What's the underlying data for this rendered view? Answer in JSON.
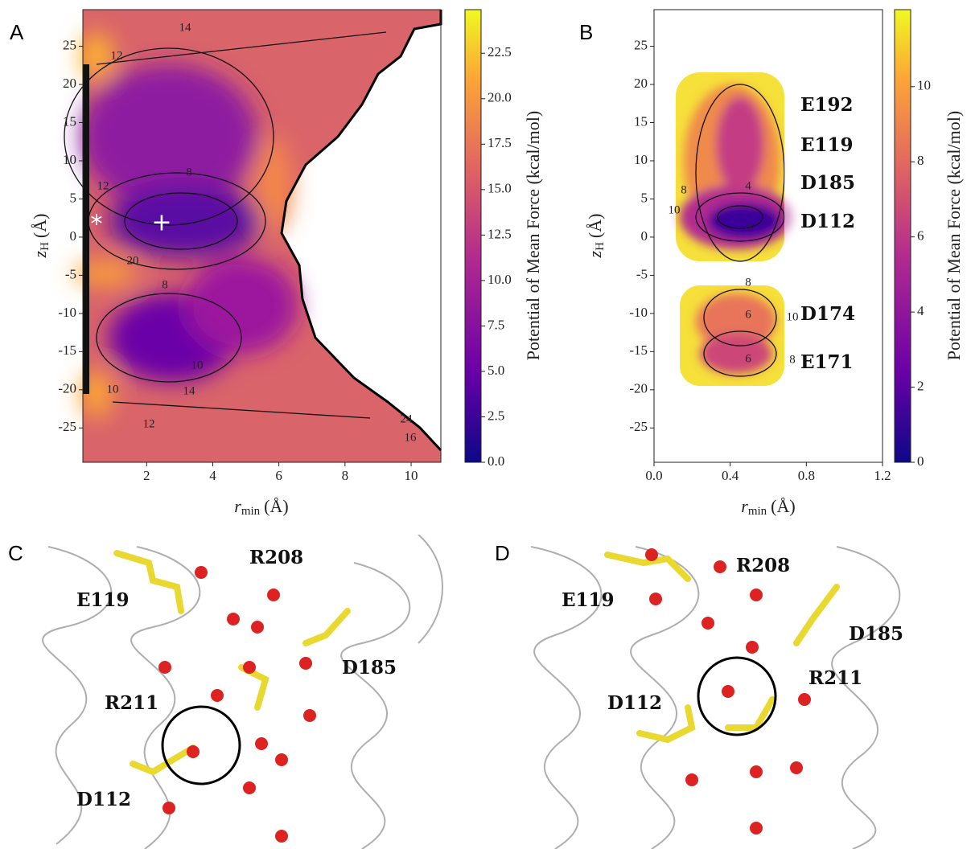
{
  "panels": [
    {
      "label": "A",
      "xlabel": {
        "main": "r",
        "sub": "min",
        "unit": "(Å)"
      },
      "ylabel": {
        "main": "z",
        "sub": "H",
        "unit": "(Å)"
      },
      "xlim": [
        0.07,
        10.9
      ],
      "ylim": [
        -29.5,
        29.8
      ],
      "xticks": [
        2,
        4,
        6,
        8,
        10
      ],
      "yticks": [
        -25,
        -20,
        -15,
        -10,
        -5,
        0,
        5,
        10,
        15,
        20,
        25
      ],
      "colorbar": {
        "label": "Potential of Mean Force (kcal/mol)",
        "lim": [
          0,
          24.9
        ],
        "ticks": [
          {
            "value": 0,
            "label": "0.0"
          },
          2.5,
          {
            "value": 5,
            "label": "5.0"
          },
          7.5,
          {
            "value": 10,
            "label": "10.0"
          },
          12.5,
          {
            "value": 15,
            "label": "15.0"
          },
          17.5,
          {
            "value": 20,
            "label": "20.0"
          },
          22.5
        ]
      },
      "contour_labels": [
        "14",
        "12",
        "8",
        "12",
        "20",
        "8",
        "10",
        "14",
        "12",
        "24",
        "16",
        "10"
      ],
      "markers": [
        "*",
        "+"
      ]
    },
    {
      "label": "B",
      "xlabel": {
        "main": "r",
        "sub": "min",
        "unit": "(Å)"
      },
      "ylabel": {
        "main": "z",
        "sub": "H",
        "unit": "(Å)"
      },
      "xlim": [
        0,
        1.2
      ],
      "ylim": [
        -29.5,
        29.8
      ],
      "xticks": [
        {
          "value": 0,
          "label": "0.0"
        },
        0.4,
        0.8,
        1.2
      ],
      "yticks": [
        -25,
        -20,
        -15,
        -10,
        -5,
        0,
        5,
        10,
        15,
        20,
        25
      ],
      "colorbar": {
        "label": "Potential of Mean Force (kcal/mol)",
        "lim": [
          0,
          12.05
        ],
        "ticks": [
          0,
          2,
          4,
          6,
          8,
          10
        ]
      },
      "contour_labels": [
        "8",
        "10",
        "4",
        "0",
        "8",
        "6",
        "10",
        "6",
        "8"
      ],
      "residues": [
        "E192",
        "E119",
        "D185",
        "D112",
        "D174",
        "E171"
      ]
    }
  ],
  "structures": [
    {
      "label": "C",
      "residues": [
        "R208",
        "E119",
        "D185",
        "R211",
        "D112"
      ]
    },
    {
      "label": "D",
      "residues": [
        "R208",
        "E119",
        "D185",
        "R211",
        "D112"
      ]
    }
  ]
}
